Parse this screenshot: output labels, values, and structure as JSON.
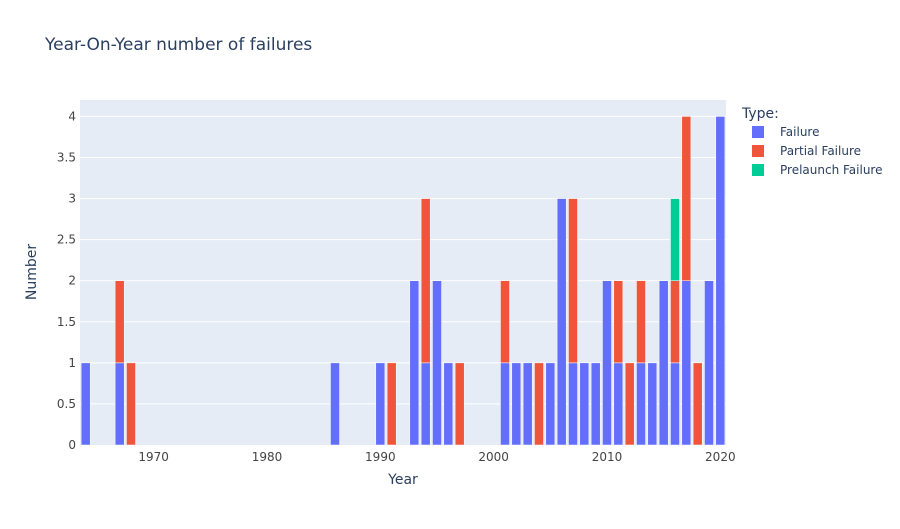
{
  "chart_data": {
    "type": "bar",
    "barmode": "stack",
    "title": "Year-On-Year number of failures",
    "xlabel": "Year",
    "ylabel": "Number",
    "xlim": [
      1963.5,
      2020.5
    ],
    "ylim": [
      0,
      4.2
    ],
    "xticks": [
      1970,
      1980,
      1990,
      2000,
      2010,
      2020
    ],
    "yticks": [
      0,
      0.5,
      1,
      1.5,
      2,
      2.5,
      3,
      3.5,
      4
    ],
    "ytick_labels": [
      "0",
      "0.5",
      "1",
      "1.5",
      "2",
      "2.5",
      "3",
      "3.5",
      "4"
    ],
    "grid": true,
    "legend": {
      "title": "Type:",
      "position": "top-right"
    },
    "series": [
      {
        "name": "Failure",
        "color": "#636efa",
        "points": [
          {
            "x": 1964,
            "y": 1
          },
          {
            "x": 1967,
            "y": 1
          },
          {
            "x": 1986,
            "y": 1
          },
          {
            "x": 1990,
            "y": 1
          },
          {
            "x": 1993,
            "y": 2
          },
          {
            "x": 1994,
            "y": 1
          },
          {
            "x": 1995,
            "y": 2
          },
          {
            "x": 1996,
            "y": 1
          },
          {
            "x": 2001,
            "y": 1
          },
          {
            "x": 2002,
            "y": 1
          },
          {
            "x": 2003,
            "y": 1
          },
          {
            "x": 2005,
            "y": 1
          },
          {
            "x": 2006,
            "y": 3
          },
          {
            "x": 2007,
            "y": 1
          },
          {
            "x": 2008,
            "y": 1
          },
          {
            "x": 2009,
            "y": 1
          },
          {
            "x": 2010,
            "y": 2
          },
          {
            "x": 2011,
            "y": 1
          },
          {
            "x": 2013,
            "y": 1
          },
          {
            "x": 2014,
            "y": 1
          },
          {
            "x": 2015,
            "y": 2
          },
          {
            "x": 2016,
            "y": 1
          },
          {
            "x": 2017,
            "y": 2
          },
          {
            "x": 2019,
            "y": 2
          },
          {
            "x": 2020,
            "y": 4
          }
        ]
      },
      {
        "name": "Partial Failure",
        "color": "#ef553b",
        "points": [
          {
            "x": 1967,
            "y": 1
          },
          {
            "x": 1968,
            "y": 1
          },
          {
            "x": 1991,
            "y": 1
          },
          {
            "x": 1994,
            "y": 2
          },
          {
            "x": 1997,
            "y": 1
          },
          {
            "x": 2001,
            "y": 1
          },
          {
            "x": 2004,
            "y": 1
          },
          {
            "x": 2007,
            "y": 2
          },
          {
            "x": 2011,
            "y": 1
          },
          {
            "x": 2012,
            "y": 1
          },
          {
            "x": 2013,
            "y": 1
          },
          {
            "x": 2016,
            "y": 1
          },
          {
            "x": 2017,
            "y": 2
          },
          {
            "x": 2018,
            "y": 1
          }
        ]
      },
      {
        "name": "Prelaunch Failure",
        "color": "#00cc96",
        "points": [
          {
            "x": 2016,
            "y": 1
          }
        ]
      }
    ]
  },
  "colors": {
    "plot_background": "#e5ecf6",
    "gridline": "#ffffff",
    "text": "#2a3f5f",
    "tick_text": "#444444"
  }
}
